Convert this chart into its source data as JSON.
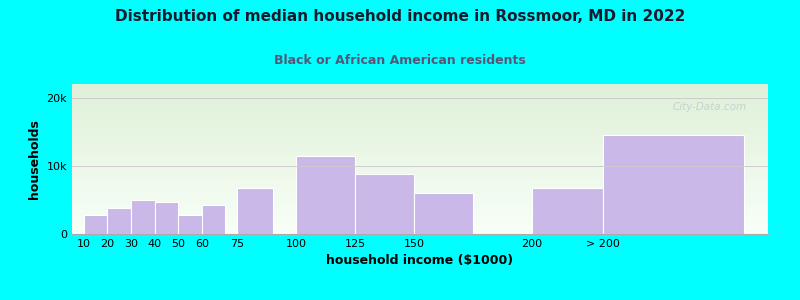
{
  "title": "Distribution of median household income in Rossmoor, MD in 2022",
  "subtitle": "Black or African American residents",
  "xlabel": "household income ($1000)",
  "ylabel": "households",
  "background_color": "#00FFFF",
  "plot_bg_gradient_top": "#dff0d8",
  "plot_bg_gradient_bottom": "#f8fff8",
  "bar_color": "#c9b8e8",
  "bar_edge_color": "#ffffff",
  "categories": [
    "10",
    "20",
    "30",
    "40",
    "50",
    "60",
    "75",
    "100",
    "125",
    "150",
    "200",
    "> 200"
  ],
  "values": [
    2800,
    3800,
    5000,
    4700,
    2800,
    4200,
    6800,
    11500,
    8800,
    6000,
    6800,
    14500
  ],
  "bar_positions": [
    10,
    20,
    30,
    40,
    50,
    60,
    75,
    100,
    125,
    150,
    200,
    230
  ],
  "actual_widths": [
    10,
    10,
    10,
    10,
    10,
    10,
    15,
    25,
    25,
    25,
    30,
    60
  ],
  "xlim": [
    5,
    300
  ],
  "ylim": [
    0,
    22000
  ],
  "yticks": [
    0,
    10000,
    20000
  ],
  "ytick_labels": [
    "0",
    "10k",
    "20k"
  ],
  "watermark": "City-Data.com",
  "title_fontsize": 11,
  "subtitle_fontsize": 9,
  "axis_label_fontsize": 9,
  "tick_fontsize": 8
}
